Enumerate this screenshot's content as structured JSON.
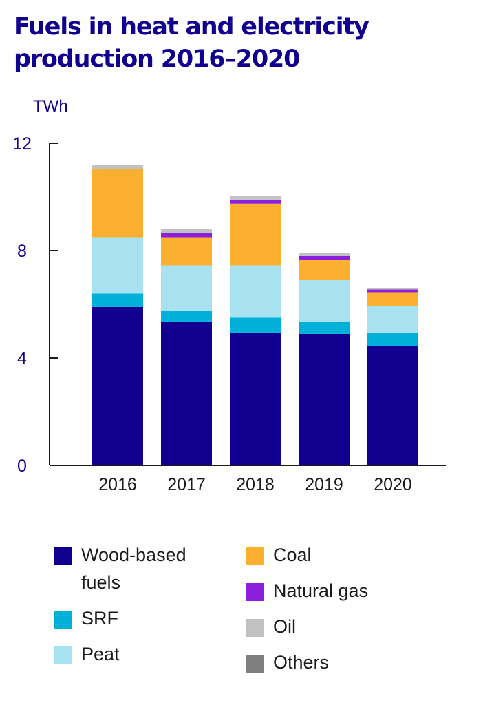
{
  "title_line1": "Fuels in heat and electricity",
  "title_line2": "production 2016–2020",
  "chart_data": {
    "type": "bar",
    "stacked": true,
    "title": "Fuels in heat and electricity production 2016–2020",
    "ylabel": "TWh",
    "xlabel": "",
    "ylim": [
      0,
      12
    ],
    "yticks": [
      "0",
      "4",
      "8",
      "12"
    ],
    "grid": false,
    "categories": [
      "2016",
      "2017",
      "2018",
      "2019",
      "2020"
    ],
    "series": [
      {
        "name": "Wood-based fuels",
        "color": "#11008f",
        "values": [
          5.9,
          5.35,
          4.95,
          4.9,
          4.45
        ]
      },
      {
        "name": "SRF",
        "color": "#00b0d8",
        "values": [
          0.5,
          0.4,
          0.55,
          0.45,
          0.5
        ]
      },
      {
        "name": "Peat",
        "color": "#a8e2f0",
        "values": [
          2.1,
          1.7,
          1.95,
          1.55,
          1.0
        ]
      },
      {
        "name": "Coal",
        "color": "#fdb02f",
        "values": [
          2.55,
          1.05,
          2.3,
          0.75,
          0.5
        ]
      },
      {
        "name": "Natural gas",
        "color": "#8a1fdc",
        "values": [
          0.0,
          0.15,
          0.15,
          0.15,
          0.1
        ]
      },
      {
        "name": "Oil",
        "color": "#c2c2c2",
        "values": [
          0.15,
          0.15,
          0.13,
          0.12,
          0.05
        ]
      },
      {
        "name": "Others",
        "color": "#7f7f7f",
        "values": [
          0.0,
          0.0,
          0.0,
          0.0,
          0.0
        ]
      }
    ],
    "legend_placement": "bottom"
  },
  "legend": [
    {
      "label": "Wood-based fuels",
      "line1": "Wood-based",
      "line2": "fuels",
      "color": "#11008f"
    },
    {
      "label": "SRF",
      "line1": "SRF",
      "line2": "",
      "color": "#00b0d8"
    },
    {
      "label": "Peat",
      "line1": "Peat",
      "line2": "",
      "color": "#a8e2f0"
    },
    {
      "label": "Coal",
      "line1": "Coal",
      "line2": "",
      "color": "#fdb02f"
    },
    {
      "label": "Natural gas",
      "line1": "Natural gas",
      "line2": "",
      "color": "#8a1fdc"
    },
    {
      "label": "Oil",
      "line1": "Oil",
      "line2": "",
      "color": "#c2c2c2"
    },
    {
      "label": "Others",
      "line1": "Others",
      "line2": "",
      "color": "#7f7f7f"
    }
  ]
}
